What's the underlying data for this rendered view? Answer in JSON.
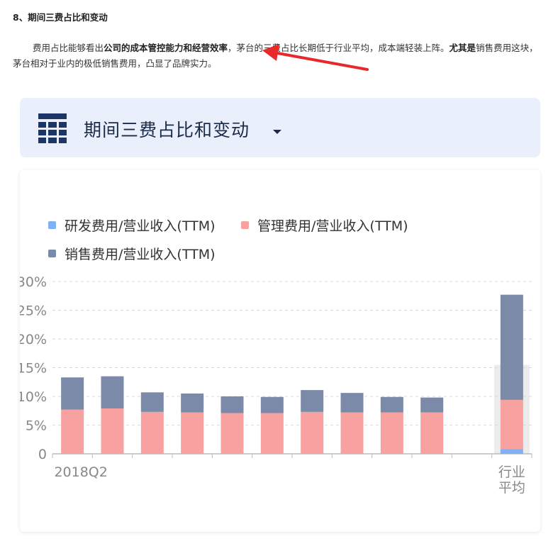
{
  "article": {
    "heading": "8、期间三费占比和变动",
    "para_part1": "费用占比能够看出",
    "para_bold": "公司的成本管控能力和经营效率",
    "para_part2": "，茅台的三费占比长期低于行业平均，成本端轻装上阵。",
    "para_bold2": "尤其是",
    "para_part3": "销售费用这块，茅台相对于业内的极低销售费用，凸显了品牌实力。"
  },
  "annotation": {
    "arrow_color": "#e8292b"
  },
  "panel": {
    "title": "期间三费占比和变动",
    "icon": "table-grid-icon",
    "dropdown_icon": "caret-down-icon"
  },
  "chart_data": {
    "type": "bar",
    "stacked": true,
    "y_tick_labels": [
      "0",
      "5%",
      "10%",
      "15%",
      "20%",
      "25%",
      "30%"
    ],
    "ylim": [
      0,
      30
    ],
    "categories": [
      "2018Q2",
      "",
      "",
      "",
      "",
      "",
      "",
      "",
      "",
      "",
      "",
      "行业平均"
    ],
    "x_tick_labels": [
      "2018Q2",
      "行业\n平均"
    ],
    "legend": [
      "研发费用/营业收入(TTM)",
      "管理费用/营业收入(TTM)",
      "销售费用/营业收入(TTM)"
    ],
    "series": [
      {
        "name": "研发费用/营业收入(TTM)",
        "color": "#7fb2f5",
        "values": [
          0,
          0,
          0,
          0,
          0,
          0,
          0,
          0,
          0,
          0,
          null,
          0.8
        ]
      },
      {
        "name": "管理费用/营业收入(TTM)",
        "color": "#f7a1a1",
        "values": [
          7.7,
          7.9,
          7.3,
          7.2,
          7.1,
          7.1,
          7.3,
          7.2,
          7.2,
          7.2,
          null,
          8.6
        ]
      },
      {
        "name": "销售费用/营业收入(TTM)",
        "color": "#7a8aa8",
        "values": [
          5.6,
          5.6,
          3.4,
          3.3,
          2.9,
          2.8,
          3.8,
          3.4,
          2.7,
          2.6,
          null,
          18.3
        ]
      }
    ],
    "grid": true,
    "highlight_last": true,
    "legend_position": "top-left"
  }
}
